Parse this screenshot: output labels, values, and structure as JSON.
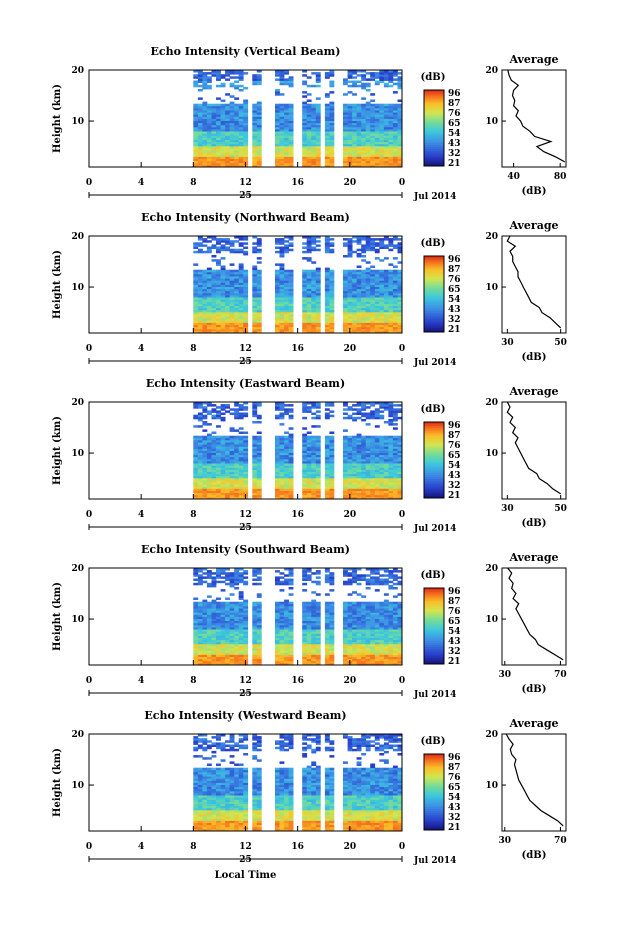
{
  "figure": {
    "xlabel": "Local Time",
    "date_label": "Jul 2014",
    "day_label": "25",
    "colorbar_unit": "(dB)",
    "average_title": "Average",
    "average_xlabel": "(dB)"
  },
  "chart_data": [
    {
      "type": "heatmap",
      "title": "Echo Intensity (Vertical Beam)",
      "xlabel": "Local Time",
      "ylabel": "Height (km)",
      "x_ticks": [
        "0",
        "4",
        "8",
        "12",
        "16",
        "20",
        "0"
      ],
      "y_ticks": [
        "10",
        "20"
      ],
      "xlim": [
        0,
        24
      ],
      "ylim": [
        1,
        20
      ],
      "data_time_range": [
        8,
        24
      ],
      "colorbar": {
        "label": "(dB)",
        "ticks": [
          "96",
          "87",
          "76",
          "65",
          "54",
          "43",
          "32",
          "21"
        ]
      },
      "profile": {
        "title": "Average",
        "xlabel": "(dB)",
        "x_ticks": [
          "40",
          "80"
        ],
        "y_ticks": [
          "10",
          "20"
        ],
        "xlim": [
          30,
          85
        ],
        "height_km": [
          2,
          3,
          4,
          5,
          6,
          7,
          8,
          9,
          10,
          11,
          12,
          13,
          14,
          15,
          16,
          17,
          18,
          19,
          20
        ],
        "values_db": [
          84,
          76,
          66,
          60,
          72,
          58,
          54,
          48,
          46,
          42,
          44,
          40,
          41,
          39,
          40,
          44,
          38,
          36,
          35
        ]
      }
    },
    {
      "type": "heatmap",
      "title": "Echo Intensity (Northward Beam)",
      "xlabel": "Local Time",
      "ylabel": "Height (km)",
      "x_ticks": [
        "0",
        "4",
        "8",
        "12",
        "16",
        "20",
        "0"
      ],
      "y_ticks": [
        "10",
        "20"
      ],
      "xlim": [
        0,
        24
      ],
      "ylim": [
        1,
        20
      ],
      "data_time_range": [
        8,
        24
      ],
      "colorbar": {
        "label": "(dB)",
        "ticks": [
          "96",
          "87",
          "76",
          "65",
          "54",
          "43",
          "32",
          "21"
        ]
      },
      "profile": {
        "title": "Average",
        "xlabel": "(dB)",
        "x_ticks": [
          "30",
          "50"
        ],
        "y_ticks": [
          "10",
          "20"
        ],
        "xlim": [
          28,
          52
        ],
        "height_km": [
          2,
          3,
          4,
          5,
          6,
          7,
          8,
          9,
          10,
          11,
          12,
          13,
          14,
          15,
          16,
          17,
          18,
          19,
          20
        ],
        "values_db": [
          50,
          48,
          46,
          43,
          42,
          39,
          38,
          37,
          36,
          35,
          34,
          34,
          33,
          32,
          32,
          31,
          33,
          30,
          31
        ]
      }
    },
    {
      "type": "heatmap",
      "title": "Echo Intensity (Eastward Beam)",
      "xlabel": "Local Time",
      "ylabel": "Height (km)",
      "x_ticks": [
        "0",
        "4",
        "8",
        "12",
        "16",
        "20",
        "0"
      ],
      "y_ticks": [
        "10",
        "20"
      ],
      "xlim": [
        0,
        24
      ],
      "ylim": [
        1,
        20
      ],
      "data_time_range": [
        8,
        24
      ],
      "colorbar": {
        "label": "(dB)",
        "ticks": [
          "96",
          "87",
          "76",
          "65",
          "54",
          "43",
          "32",
          "21"
        ]
      },
      "profile": {
        "title": "Average",
        "xlabel": "(dB)",
        "x_ticks": [
          "30",
          "50"
        ],
        "y_ticks": [
          "10",
          "20"
        ],
        "xlim": [
          28,
          52
        ],
        "height_km": [
          2,
          3,
          4,
          5,
          6,
          7,
          8,
          9,
          10,
          11,
          12,
          13,
          14,
          15,
          16,
          17,
          18,
          19,
          20
        ],
        "values_db": [
          50,
          47,
          45,
          42,
          41,
          38,
          37,
          36,
          35,
          34,
          33,
          34,
          32,
          33,
          31,
          32,
          30,
          31,
          30
        ]
      }
    },
    {
      "type": "heatmap",
      "title": "Echo Intensity (Southward Beam)",
      "xlabel": "Local Time",
      "ylabel": "Height (km)",
      "x_ticks": [
        "0",
        "4",
        "8",
        "12",
        "16",
        "20",
        "0"
      ],
      "y_ticks": [
        "10",
        "20"
      ],
      "xlim": [
        0,
        24
      ],
      "ylim": [
        1,
        20
      ],
      "data_time_range": [
        8,
        24
      ],
      "colorbar": {
        "label": "(dB)",
        "ticks": [
          "96",
          "87",
          "76",
          "65",
          "54",
          "43",
          "32",
          "21"
        ]
      },
      "profile": {
        "title": "Average",
        "xlabel": "(dB)",
        "x_ticks": [
          "30",
          "70"
        ],
        "y_ticks": [
          "10",
          "20"
        ],
        "xlim": [
          28,
          74
        ],
        "height_km": [
          2,
          3,
          4,
          5,
          6,
          7,
          8,
          9,
          10,
          11,
          12,
          13,
          14,
          15,
          16,
          17,
          18,
          19,
          20
        ],
        "values_db": [
          72,
          66,
          60,
          54,
          52,
          48,
          46,
          44,
          42,
          40,
          38,
          40,
          36,
          38,
          35,
          36,
          33,
          35,
          32
        ]
      }
    },
    {
      "type": "heatmap",
      "title": "Echo Intensity (Westward Beam)",
      "xlabel": "Local Time",
      "ylabel": "Height (km)",
      "x_ticks": [
        "0",
        "4",
        "8",
        "12",
        "16",
        "20",
        "0"
      ],
      "y_ticks": [
        "10",
        "20"
      ],
      "xlim": [
        0,
        24
      ],
      "ylim": [
        1,
        20
      ],
      "data_time_range": [
        8,
        24
      ],
      "colorbar": {
        "label": "(dB)",
        "ticks": [
          "96",
          "87",
          "76",
          "65",
          "54",
          "43",
          "32",
          "21"
        ]
      },
      "profile": {
        "title": "Average",
        "xlabel": "(dB)",
        "x_ticks": [
          "30",
          "70"
        ],
        "y_ticks": [
          "10",
          "20"
        ],
        "xlim": [
          28,
          74
        ],
        "height_km": [
          2,
          3,
          4,
          5,
          6,
          7,
          8,
          9,
          10,
          11,
          12,
          13,
          14,
          15,
          16,
          17,
          18,
          19,
          20
        ],
        "values_db": [
          72,
          68,
          62,
          56,
          52,
          48,
          46,
          44,
          42,
          40,
          39,
          38,
          37,
          38,
          35,
          34,
          36,
          33,
          31
        ]
      }
    }
  ]
}
